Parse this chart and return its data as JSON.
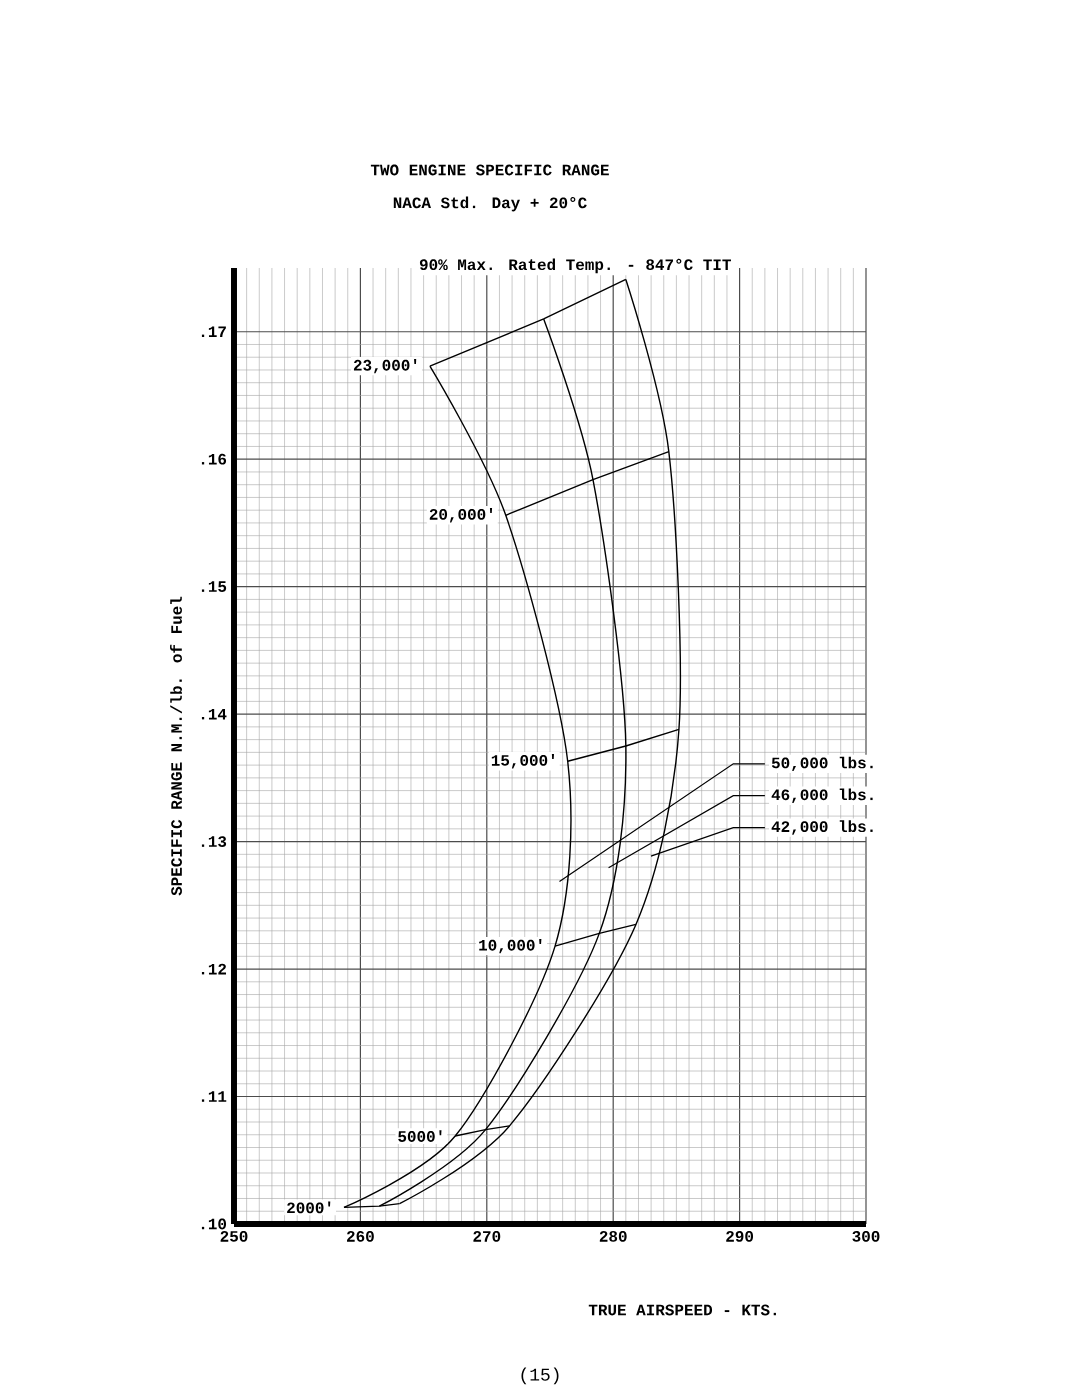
{
  "chart_data": {
    "type": "line",
    "title": "TWO ENGINE SPECIFIC RANGE",
    "subtitle": "NACA Std. Day + 20°C",
    "xlabel": "TRUE AIRSPEED - KTS.",
    "ylabel": "SPECIFIC RANGE N.M./lb. of Fuel",
    "xlim": [
      250,
      300
    ],
    "ylim": [
      0.1,
      0.175
    ],
    "xticks": [
      250,
      260,
      270,
      280,
      290,
      300
    ],
    "yticks": [
      {
        "value": 0.1,
        "label": ".10"
      },
      {
        "value": 0.11,
        "label": ".11"
      },
      {
        "value": 0.12,
        "label": ".12"
      },
      {
        "value": 0.13,
        "label": ".13"
      },
      {
        "value": 0.14,
        "label": ".14"
      },
      {
        "value": 0.15,
        "label": ".15"
      },
      {
        "value": 0.16,
        "label": ".16"
      },
      {
        "value": 0.17,
        "label": ".17"
      }
    ],
    "grid": true,
    "series": [
      {
        "name": "50,000 lbs.",
        "color": "#000000",
        "x": [
          258.7,
          267.5,
          275.4,
          276.4,
          271.5,
          265.5
        ],
        "values": [
          0.1013,
          0.1069,
          0.1218,
          0.1363,
          0.1556,
          0.1673
        ]
      },
      {
        "name": "46,000 lbs.",
        "color": "#000000",
        "x": [
          261.5,
          269.9,
          278.9,
          281.0,
          278.4,
          274.5
        ],
        "values": [
          0.1014,
          0.1074,
          0.1228,
          0.1375,
          0.1584,
          0.171
        ]
      },
      {
        "name": "42,000 lbs.",
        "color": "#000000",
        "x": [
          263.1,
          271.8,
          281.8,
          285.2,
          284.4,
          281.0
        ],
        "values": [
          0.1016,
          0.1077,
          0.1235,
          0.1388,
          0.1606,
          0.1741
        ]
      }
    ],
    "annotations": [
      {
        "text": "2000'",
        "x": 258.7,
        "y": 0.1013
      },
      {
        "text": "5000'",
        "x": 267.5,
        "y": 0.1069
      },
      {
        "text": "10,000'",
        "x": 275.4,
        "y": 0.1218
      },
      {
        "text": "15,000'",
        "x": 276.4,
        "y": 0.1363
      },
      {
        "text": "20,000'",
        "x": 271.5,
        "y": 0.1556
      },
      {
        "text": "23,000'",
        "x": 265.5,
        "y": 0.1673
      },
      {
        "text": "90% Max. Rated Temp. - 847°C TIT",
        "x": 281.0,
        "y": 0.1741
      },
      "(15)"
    ]
  }
}
